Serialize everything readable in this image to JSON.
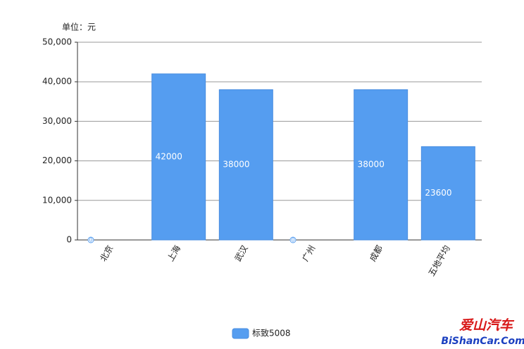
{
  "chart_data": {
    "type": "bar",
    "unit_label": "单位：元",
    "categories": [
      "北京",
      "上海",
      "武汉",
      "广州",
      "成都",
      "五地平均"
    ],
    "series": [
      {
        "name": "标致5008",
        "color": "#559df0",
        "values": [
          0,
          42000,
          38000,
          0,
          38000,
          23600
        ]
      }
    ],
    "ylim": [
      0,
      50000
    ],
    "yticks": [
      0,
      {
        "value": 10000,
        "label": "10,000"
      },
      {
        "value": 20000,
        "label": "20,000"
      },
      {
        "value": 30000,
        "label": "30,000"
      },
      {
        "value": 40000,
        "label": "40,000"
      },
      {
        "value": 50000,
        "label": "50,000"
      }
    ],
    "grid": true,
    "legend": "bottom",
    "watermark": {
      "title": "爱山汽车",
      "url": "BiShanCar.Com"
    }
  }
}
